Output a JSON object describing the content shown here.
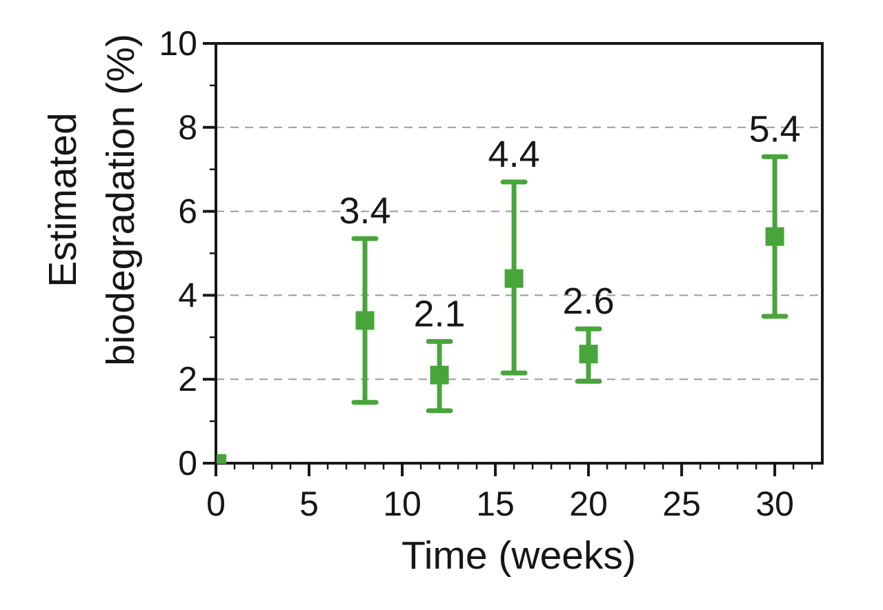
{
  "style": {
    "background": "#ffffff",
    "axis_color": "#161616",
    "text_color": "#161616",
    "grid_color": "#9b9b9b",
    "series_color": "#48a53a"
  },
  "chart_data": {
    "type": "scatter",
    "title": "",
    "xlabel": "Time (weeks)",
    "ylabel": "Estimated biodegradation (%)",
    "ylabel_lines": [
      "Estimated",
      "biodegradation (%)"
    ],
    "xlim": [
      0,
      32.55
    ],
    "ylim": [
      0,
      10
    ],
    "x_major_ticks": [
      0,
      5,
      10,
      15,
      20,
      25,
      30
    ],
    "x_minor_step": 1,
    "y_major_ticks": [
      0,
      2,
      4,
      6,
      8,
      10
    ],
    "y_minor_step": 1,
    "gridline_y_values": [
      2,
      4,
      6,
      8
    ],
    "grid": "dashed-horizontal",
    "legend": "none",
    "series": [
      {
        "name": "Estimated biodegradation (%)",
        "marker": "square",
        "points": [
          {
            "x": 0.3,
            "y": 0.1,
            "err_plus": 0,
            "err_minus": 0,
            "label": "",
            "small_marker": true
          },
          {
            "x": 8,
            "y": 3.4,
            "err_plus": 1.95,
            "err_minus": 1.95,
            "label": "3.4"
          },
          {
            "x": 12,
            "y": 2.1,
            "err_plus": 0.8,
            "err_minus": 0.85,
            "label": "2.1"
          },
          {
            "x": 16,
            "y": 4.4,
            "err_plus": 2.3,
            "err_minus": 2.25,
            "label": "4.4"
          },
          {
            "x": 20,
            "y": 2.6,
            "err_plus": 0.6,
            "err_minus": 0.65,
            "label": "2.6"
          },
          {
            "x": 30,
            "y": 5.4,
            "err_plus": 1.9,
            "err_minus": 1.9,
            "label": "5.4"
          }
        ]
      }
    ]
  }
}
